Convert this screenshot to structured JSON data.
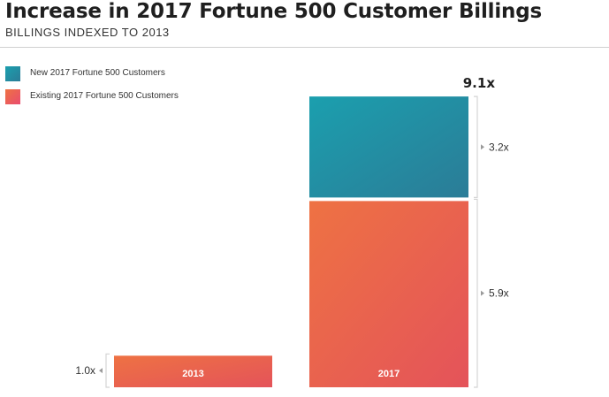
{
  "title": "Increase in 2017 Fortune 500 Customer Billings",
  "subtitle": "BILLINGS INDEXED TO 2013",
  "colors": {
    "new_start": "#1b9fae",
    "new_end": "#2b7c97",
    "existing_start": "#ee7243",
    "existing_end": "#e4535a",
    "swatch_existing_start": "#ee7243",
    "swatch_existing_end": "#e94c6f",
    "bracket": "#d4d4d4"
  },
  "legend": [
    {
      "label": "New 2017 Fortune 500 Customers",
      "series": "new"
    },
    {
      "label": "Existing 2017 Fortune 500 Customers",
      "series": "existing"
    }
  ],
  "chart_data": {
    "type": "bar",
    "stacked": true,
    "categories": [
      "2013",
      "2017"
    ],
    "series": [
      {
        "name": "Existing 2017 Fortune 500 Customers",
        "key": "existing",
        "values": [
          1.0,
          5.9
        ],
        "labels": [
          "1.0x",
          "5.9x"
        ]
      },
      {
        "name": "New 2017 Fortune 500 Customers",
        "key": "new",
        "values": [
          0,
          3.2
        ],
        "labels": [
          "",
          "3.2x"
        ]
      }
    ],
    "totals": [
      1.0,
      9.1
    ],
    "total_labels": [
      "",
      "9.1x"
    ],
    "legend_position": "top-left",
    "grid": false
  }
}
